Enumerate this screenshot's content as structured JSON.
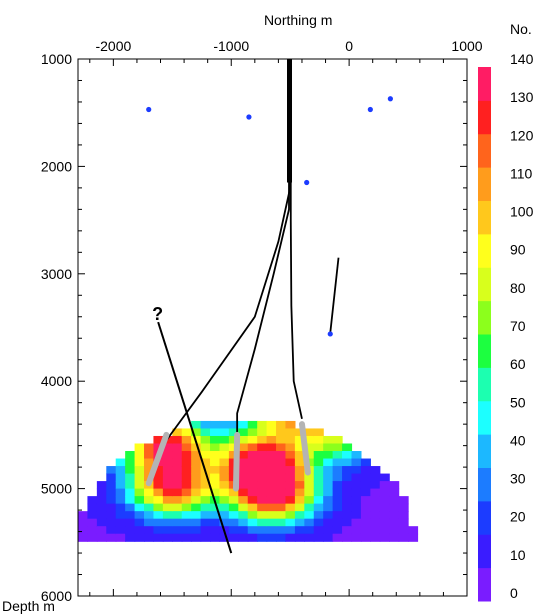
{
  "chart_data": {
    "type": "heatmap",
    "x_axis": {
      "label": "Northing m",
      "position": "top",
      "range": [
        -2300,
        1000
      ],
      "ticks": [
        -2000,
        -1000,
        0,
        1000
      ],
      "tick_labels": [
        "-2000",
        "-1000",
        "0",
        "1000"
      ]
    },
    "y_axis": {
      "label": "Depth m",
      "position": "left",
      "inverted": true,
      "range": [
        1000,
        6000
      ],
      "ticks": [
        1000,
        2000,
        3000,
        4000,
        5000,
        6000
      ],
      "tick_labels": [
        "1000",
        "2000",
        "3000",
        "4000",
        "5000",
        "6000"
      ]
    },
    "colorbar": {
      "title": "No.",
      "range": [
        0,
        140
      ],
      "ticks": [
        0,
        10,
        20,
        30,
        40,
        50,
        60,
        70,
        80,
        90,
        100,
        110,
        120,
        130,
        140
      ],
      "tick_labels": [
        "0",
        "10",
        "20",
        "30",
        "40",
        "50",
        "60",
        "70",
        "80",
        "90",
        "100",
        "110",
        "120",
        "130",
        "140"
      ],
      "colors": [
        "#7a1cff",
        "#3a1cff",
        "#1c3cff",
        "#1c7cff",
        "#1cb8ff",
        "#1cffff",
        "#1cffb0",
        "#1cff40",
        "#8cff1c",
        "#d8ff1c",
        "#ffff1c",
        "#ffc81c",
        "#ff9c1c",
        "#ff641c",
        "#ff2020",
        "#ff1c64"
      ]
    },
    "grid": false,
    "events_extent": {
      "x_range": [
        -2300,
        550
      ],
      "depth_range": [
        3600,
        5500
      ]
    },
    "hotspots": [
      {
        "x": -750,
        "depth": 4750,
        "value": 140
      },
      {
        "x": -650,
        "depth": 5050,
        "value": 140
      },
      {
        "x": -1550,
        "depth": 4600,
        "value": 130
      },
      {
        "x": -1500,
        "depth": 5000,
        "value": 120
      },
      {
        "x": -500,
        "depth": 4250,
        "value": 110
      },
      {
        "x": -100,
        "depth": 4500,
        "value": 70
      }
    ],
    "wells": [
      {
        "name": "",
        "path": [
          [
            -500,
            1000
          ],
          [
            -500,
            2200
          ],
          [
            -600,
            2700
          ],
          [
            -800,
            3400
          ],
          [
            -1250,
            4100
          ],
          [
            -1550,
            4550
          ]
        ]
      },
      {
        "name": "",
        "path": [
          [
            -510,
            1000
          ],
          [
            -510,
            2400
          ],
          [
            -640,
            3000
          ],
          [
            -800,
            3700
          ],
          [
            -950,
            4300
          ],
          [
            -950,
            4550
          ]
        ]
      },
      {
        "name": "",
        "path": [
          [
            -495,
            1000
          ],
          [
            -495,
            2500
          ],
          [
            -490,
            3300
          ],
          [
            -470,
            4000
          ],
          [
            -400,
            4350
          ]
        ]
      },
      {
        "name": "",
        "path": [
          [
            -90,
            2850
          ],
          [
            -160,
            3550
          ]
        ]
      }
    ],
    "stages": [
      {
        "from": [
          -1550,
          4500
        ],
        "to": [
          -1700,
          4950
        ]
      },
      {
        "from": [
          -950,
          4500
        ],
        "to": [
          -960,
          5000
        ]
      },
      {
        "from": [
          -400,
          4400
        ],
        "to": [
          -350,
          4850
        ]
      }
    ],
    "points": [
      {
        "x": -1700,
        "depth": 1470
      },
      {
        "x": -850,
        "depth": 1540
      },
      {
        "x": 180,
        "depth": 1470
      },
      {
        "x": 350,
        "depth": 1370
      },
      {
        "x": -360,
        "depth": 2150
      },
      {
        "x": -160,
        "depth": 3560
      }
    ],
    "annotation_line": {
      "from": [
        -1620,
        3450
      ],
      "to": [
        -1000,
        5600
      ]
    },
    "annotation_text": "?"
  }
}
